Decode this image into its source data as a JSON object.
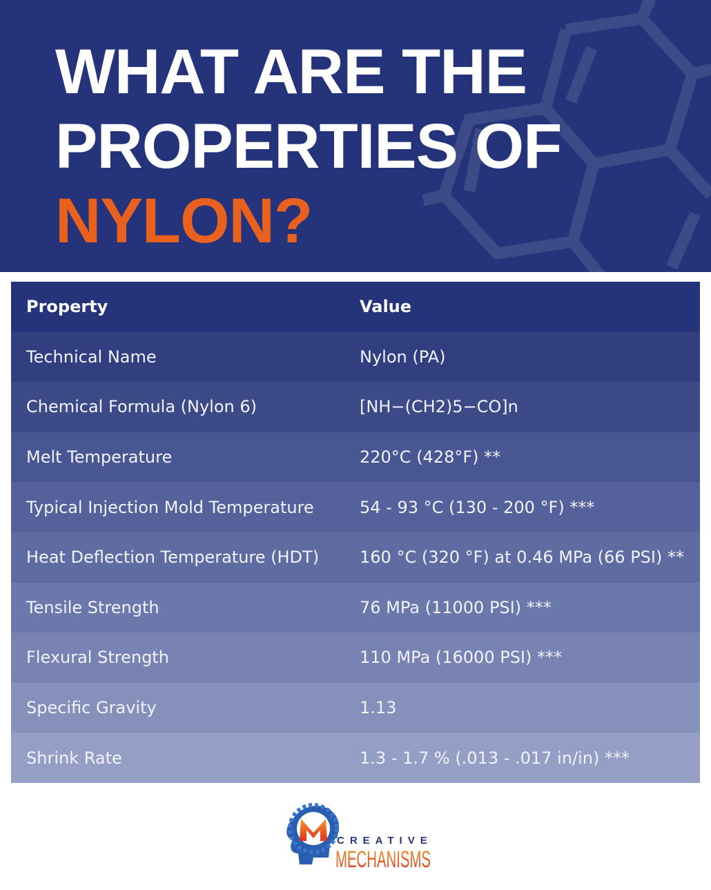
{
  "header": {
    "title_lines": [
      "WHAT ARE THE",
      "PROPERTIES OF"
    ],
    "title_accent": "NYLON?",
    "accent_color": "#e8611f",
    "background_color": "#25337a"
  },
  "table": {
    "columns": [
      "Property",
      "Value"
    ],
    "rows": [
      {
        "property": "Technical Name",
        "value": "Nylon (PA)"
      },
      {
        "property": "Chemical Formula (Nylon 6)",
        "value": "[NH−(CH2)5−CO]n"
      },
      {
        "property": "Melt Temperature",
        "value": "220°C (428°F) **"
      },
      {
        "property": "Typical Injection Mold Temperature",
        "value": "54 - 93 °C (130 - 200 °F) ***"
      },
      {
        "property": "Heat Deflection Temperature (HDT)",
        "value": "160 °C (320 °F) at 0.46 MPa (66 PSI) **"
      },
      {
        "property": "Tensile Strength",
        "value": "76 MPa (11000 PSI) ***"
      },
      {
        "property": "Flexural Strength",
        "value": "110 MPa (16000 PSI) ***"
      },
      {
        "property": "Specific Gravity",
        "value": "1.13"
      },
      {
        "property": "Shrink Rate",
        "value": "1.3 - 1.7 % (.013 - .017 in/in) ***"
      }
    ],
    "row_colors": [
      "#25337a",
      "#313f80",
      "#3c4a88",
      "#485692",
      "#54619a",
      "#5f6ca2",
      "#6b78ab",
      "#7883b3",
      "#8590bb",
      "#959fc6"
    ]
  },
  "logo": {
    "line1": "CREATIVE",
    "line2": "MECHANISMS"
  }
}
